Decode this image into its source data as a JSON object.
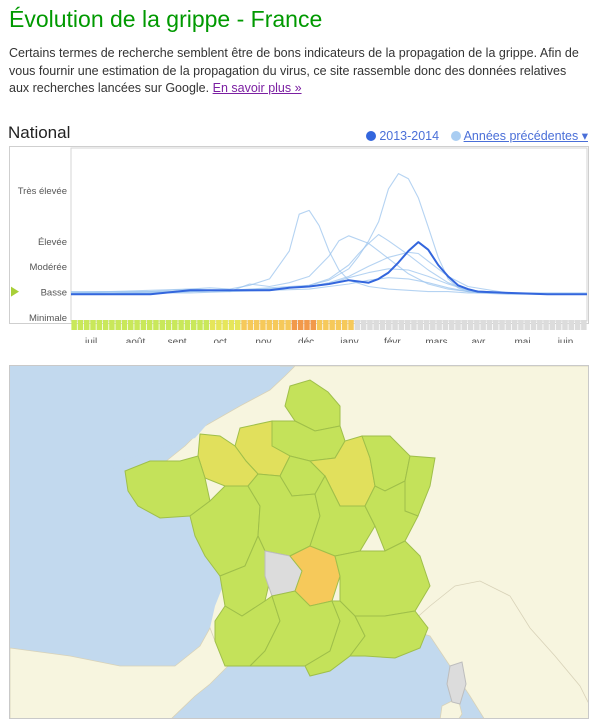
{
  "page": {
    "title": "Évolution de la grippe - France",
    "intro": "Certains termes de recherche semblent être de bons indicateurs de la propagation de la grippe. Afin de vous fournir une estimation de la propagation du virus, ce site rassemble donc des données relatives aux recherches lancées sur Google.",
    "learn_more": "En savoir plus »"
  },
  "chart_header": {
    "region": "National",
    "legend_current": "2013-2014",
    "legend_previous": "Années précédentes ▾"
  },
  "colors": {
    "title_green": "#009900",
    "current_series": "#3366dd",
    "previous_series": "#9cc4ee",
    "activity_minimal": "#c9e85a",
    "activity_low": "#e6e65a",
    "activity_moderate": "#f6c95a",
    "activity_high": "#f2994a",
    "no_data": "#dcdcdc"
  },
  "chart_data": {
    "type": "line",
    "xlabel": "",
    "ylabel": "",
    "x_ticks": [
      "juil.",
      "août",
      "sept.",
      "oct.",
      "nov.",
      "déc.",
      "janv.",
      "févr.",
      "mars",
      "avr.",
      "mai",
      "juin"
    ],
    "y_levels": [
      "Minimale",
      "Basse",
      "Modérée",
      "Élevée",
      "Très élevée"
    ],
    "y_level_values": [
      0,
      1,
      2,
      3,
      5
    ],
    "current_level": "Basse",
    "ylim": [
      0,
      6.5
    ],
    "week_axis": "week number from the start of July (0 = early July, 52 = end of June)",
    "series": [
      {
        "style": "current",
        "x": [
          0,
          4,
          8,
          12,
          16,
          20,
          22,
          24,
          26,
          28,
          30,
          31,
          32,
          33,
          34,
          35,
          36,
          37,
          38,
          39,
          40,
          41,
          44,
          48,
          52
        ],
        "values": [
          0.9,
          0.9,
          0.9,
          1.05,
          1.05,
          1.05,
          1.15,
          1.2,
          1.3,
          1.45,
          1.35,
          1.5,
          1.75,
          2.15,
          2.6,
          2.95,
          2.65,
          2.05,
          1.6,
          1.25,
          1.1,
          1.0,
          0.95,
          0.9,
          0.9
        ]
      },
      {
        "style": "previous",
        "x": [
          0,
          4,
          8,
          12,
          16,
          20,
          22,
          24,
          26,
          28,
          29,
          30,
          31,
          32,
          33,
          34,
          35,
          36,
          37,
          38,
          39,
          40,
          41,
          44,
          48,
          52
        ],
        "values": [
          0.95,
          0.95,
          0.95,
          1.0,
          1.05,
          1.1,
          1.15,
          1.25,
          1.45,
          1.9,
          2.4,
          3.0,
          3.75,
          5.05,
          5.65,
          5.45,
          4.7,
          3.55,
          2.35,
          1.5,
          1.15,
          1.0,
          0.95,
          0.9,
          0.9,
          0.9
        ]
      },
      {
        "style": "previous",
        "x": [
          0,
          4,
          8,
          12,
          14,
          16,
          18,
          20,
          22,
          23,
          24,
          25,
          26,
          27,
          28,
          30,
          32,
          34,
          36,
          38,
          40,
          44,
          48,
          52
        ],
        "values": [
          1.0,
          1.0,
          1.05,
          1.1,
          1.15,
          1.1,
          1.25,
          1.5,
          2.6,
          4.05,
          4.2,
          3.6,
          2.6,
          1.85,
          1.45,
          1.2,
          1.1,
          1.05,
          1.0,
          1.0,
          0.95,
          0.95,
          0.95,
          0.95
        ]
      },
      {
        "style": "previous",
        "x": [
          0,
          4,
          8,
          12,
          16,
          18,
          20,
          22,
          24,
          26,
          27,
          28,
          30,
          32,
          34,
          36,
          38,
          40,
          44,
          48,
          52
        ],
        "values": [
          0.95,
          1.0,
          1.0,
          1.1,
          1.0,
          1.3,
          1.2,
          1.35,
          1.6,
          2.4,
          3.0,
          3.2,
          2.9,
          2.3,
          1.7,
          1.3,
          1.1,
          1.0,
          0.95,
          0.9,
          0.9
        ]
      },
      {
        "style": "previous",
        "x": [
          0,
          4,
          8,
          12,
          16,
          20,
          24,
          26,
          28,
          29,
          30,
          31,
          32,
          34,
          36,
          38,
          40,
          44,
          48,
          52
        ],
        "values": [
          0.95,
          0.95,
          0.95,
          1.05,
          1.05,
          1.15,
          1.25,
          1.5,
          2.05,
          2.5,
          2.9,
          3.25,
          3.0,
          2.45,
          1.85,
          1.35,
          1.05,
          0.95,
          0.9,
          0.9
        ]
      },
      {
        "style": "previous",
        "x": [
          0,
          4,
          8,
          12,
          16,
          20,
          24,
          26,
          28,
          30,
          32,
          34,
          35,
          36,
          38,
          40,
          44,
          48,
          52
        ],
        "values": [
          0.9,
          0.9,
          0.95,
          1.0,
          1.05,
          1.1,
          1.2,
          1.35,
          1.6,
          2.0,
          2.35,
          2.55,
          2.5,
          2.2,
          1.6,
          1.2,
          0.95,
          0.9,
          0.9
        ]
      },
      {
        "style": "previous",
        "x": [
          0,
          4,
          8,
          12,
          16,
          20,
          24,
          26,
          28,
          30,
          32,
          34,
          36,
          38,
          40,
          44,
          48,
          52
        ],
        "values": [
          0.95,
          0.95,
          1.0,
          1.0,
          1.05,
          1.1,
          1.2,
          1.3,
          1.55,
          1.75,
          1.9,
          1.85,
          1.6,
          1.3,
          1.05,
          0.95,
          0.9,
          0.9
        ]
      },
      {
        "style": "previous",
        "x": [
          0,
          4,
          8,
          12,
          16,
          20,
          24,
          26,
          28,
          30,
          32,
          34,
          36,
          38,
          40,
          44,
          48,
          52
        ],
        "values": [
          0.9,
          0.9,
          0.95,
          0.95,
          1.0,
          1.05,
          1.1,
          1.2,
          1.3,
          1.45,
          1.55,
          1.5,
          1.35,
          1.15,
          1.0,
          0.92,
          0.9,
          0.9
        ]
      }
    ],
    "activity_bar": [
      "min",
      "min",
      "min",
      "min",
      "min",
      "min",
      "min",
      "min",
      "min",
      "min",
      "min",
      "min",
      "min",
      "min",
      "min",
      "min",
      "min",
      "min",
      "min",
      "min",
      "min",
      "min",
      "low",
      "low",
      "low",
      "low",
      "low",
      "mod",
      "mod",
      "mod",
      "mod",
      "mod",
      "mod",
      "mod",
      "mod",
      "high",
      "high",
      "high",
      "high",
      "mod",
      "mod",
      "mod",
      "mod",
      "mod",
      "mod",
      "none",
      "none",
      "none",
      "none",
      "none",
      "none",
      "none",
      "none",
      "none",
      "none",
      "none",
      "none",
      "none",
      "none",
      "none",
      "none",
      "none",
      "none",
      "none",
      "none",
      "none",
      "none",
      "none",
      "none",
      "none",
      "none",
      "none",
      "none",
      "none",
      "none",
      "none",
      "none",
      "none",
      "none",
      "none",
      "none",
      "none"
    ]
  },
  "map": {
    "regions": [
      {
        "name": "Nord-Pas-de-Calais",
        "level": "min"
      },
      {
        "name": "Picardie",
        "level": "min"
      },
      {
        "name": "Haute-Normandie",
        "level": "low"
      },
      {
        "name": "Basse-Normandie",
        "level": "low"
      },
      {
        "name": "Bretagne",
        "level": "min"
      },
      {
        "name": "Pays de la Loire",
        "level": "min"
      },
      {
        "name": "Centre",
        "level": "min"
      },
      {
        "name": "Île-de-France",
        "level": "min"
      },
      {
        "name": "Champagne-Ardenne",
        "level": "low"
      },
      {
        "name": "Lorraine",
        "level": "min"
      },
      {
        "name": "Alsace",
        "level": "min"
      },
      {
        "name": "Bourgogne",
        "level": "min"
      },
      {
        "name": "Franche-Comté",
        "level": "min"
      },
      {
        "name": "Poitou-Charentes",
        "level": "min"
      },
      {
        "name": "Limousin",
        "level": "none"
      },
      {
        "name": "Auvergne",
        "level": "mod"
      },
      {
        "name": "Rhône-Alpes",
        "level": "min"
      },
      {
        "name": "Aquitaine",
        "level": "min"
      },
      {
        "name": "Midi-Pyrénées",
        "level": "min"
      },
      {
        "name": "Languedoc-Roussillon",
        "level": "min"
      },
      {
        "name": "Provence-Alpes-Côte d'Azur",
        "level": "min"
      },
      {
        "name": "Corse",
        "level": "none"
      }
    ]
  }
}
